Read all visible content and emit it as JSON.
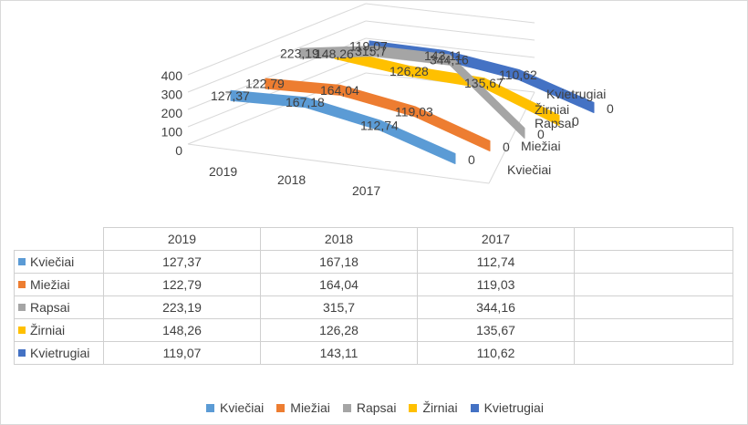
{
  "chart_data": {
    "type": "line-3d",
    "categories": [
      "2019",
      "2018",
      "2017"
    ],
    "series": [
      {
        "name": "Kviečiai",
        "color": "#5b9bd5",
        "values": [
          127.37,
          167.18,
          112.74
        ],
        "labels": [
          "127,37",
          "167,18",
          "112,74"
        ],
        "end_value": 0,
        "end_label": "0"
      },
      {
        "name": "Miežiai",
        "color": "#ed7d31",
        "values": [
          122.79,
          164.04,
          119.03
        ],
        "labels": [
          "122,79",
          "164,04",
          "119,03"
        ],
        "end_value": 0,
        "end_label": "0"
      },
      {
        "name": "Rapsai",
        "color": "#a5a5a5",
        "values": [
          223.19,
          315.7,
          344.16
        ],
        "labels": [
          "223,19",
          "315,7",
          "344,16"
        ],
        "end_value": 0,
        "end_label": "0"
      },
      {
        "name": "Žirniai",
        "color": "#ffc000",
        "values": [
          148.26,
          126.28,
          135.67
        ],
        "labels": [
          "148,26",
          "126,28",
          "135,67"
        ],
        "end_value": 0,
        "end_label": "0"
      },
      {
        "name": "Kvietrugiai",
        "color": "#4472c4",
        "values": [
          119.07,
          143.11,
          110.62
        ],
        "labels": [
          "119,07",
          "143,11",
          "110,62"
        ],
        "end_value": 0,
        "end_label": "0"
      }
    ],
    "y_ticks": [
      "0",
      "100",
      "200",
      "300",
      "400"
    ],
    "ylim": [
      0,
      400
    ],
    "legend_position": "bottom",
    "data_table": true
  },
  "table": {
    "header": [
      "2019",
      "2018",
      "2017"
    ],
    "rows": [
      {
        "label": "Kviečiai",
        "color": "#5b9bd5",
        "cells": [
          "127,37",
          "167,18",
          "112,74"
        ]
      },
      {
        "label": "Miežiai",
        "color": "#ed7d31",
        "cells": [
          "122,79",
          "164,04",
          "119,03"
        ]
      },
      {
        "label": "Rapsai",
        "color": "#a5a5a5",
        "cells": [
          "223,19",
          "315,7",
          "344,16"
        ]
      },
      {
        "label": "Žirniai",
        "color": "#ffc000",
        "cells": [
          "148,26",
          "126,28",
          "135,67"
        ]
      },
      {
        "label": "Kvietrugiai",
        "color": "#4472c4",
        "cells": [
          "119,07",
          "143,11",
          "110,62"
        ]
      }
    ]
  },
  "legend": [
    {
      "label": "Kviečiai",
      "color": "#5b9bd5"
    },
    {
      "label": "Miežiai",
      "color": "#ed7d31"
    },
    {
      "label": "Rapsai",
      "color": "#a5a5a5"
    },
    {
      "label": "Žirniai",
      "color": "#ffc000"
    },
    {
      "label": "Kvietrugiai",
      "color": "#4472c4"
    }
  ]
}
